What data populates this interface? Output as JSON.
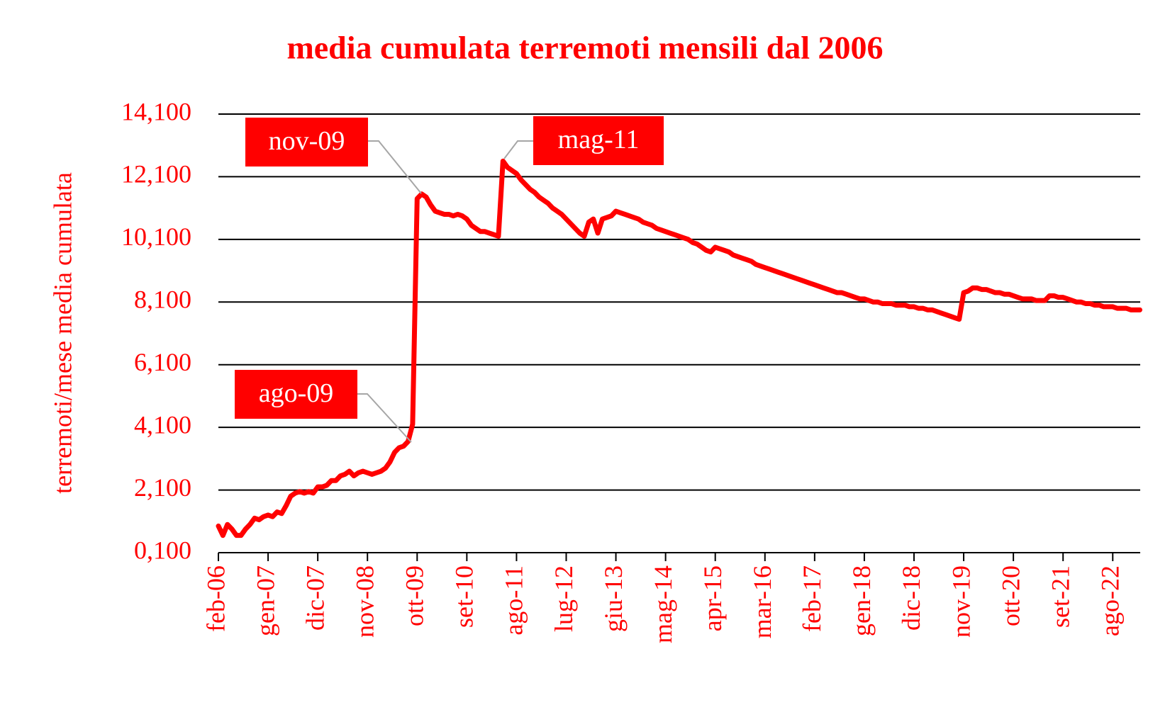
{
  "chart_data": {
    "type": "line",
    "title": "media cumulata terremoti mensili dal 2006",
    "y_label": "terremoti/mese media cumulata",
    "color": "#ff0000",
    "grid": true,
    "ylim": [
      0.1,
      14.1
    ],
    "yticks": [
      {
        "value": 0.1,
        "label": "0,100"
      },
      {
        "value": 2.1,
        "label": "2,100"
      },
      {
        "value": 4.1,
        "label": "4,100"
      },
      {
        "value": 6.1,
        "label": "6,100"
      },
      {
        "value": 8.1,
        "label": "8,100"
      },
      {
        "value": 10.1,
        "label": "10,100"
      },
      {
        "value": 12.1,
        "label": "12,100"
      },
      {
        "value": 14.1,
        "label": "14,100"
      }
    ],
    "categories": [
      "feb-06",
      null,
      null,
      null,
      null,
      null,
      null,
      null,
      null,
      null,
      null,
      "gen-07",
      null,
      null,
      null,
      null,
      null,
      null,
      null,
      null,
      null,
      null,
      "dic-07",
      null,
      null,
      null,
      null,
      null,
      null,
      null,
      null,
      null,
      null,
      "nov-08",
      null,
      null,
      null,
      null,
      null,
      null,
      null,
      null,
      null,
      null,
      "ott-09",
      null,
      null,
      null,
      null,
      null,
      null,
      null,
      null,
      null,
      null,
      "set-10",
      null,
      null,
      null,
      null,
      null,
      null,
      null,
      null,
      null,
      null,
      "ago-11",
      null,
      null,
      null,
      null,
      null,
      null,
      null,
      null,
      null,
      null,
      "lug-12",
      null,
      null,
      null,
      null,
      null,
      null,
      null,
      null,
      null,
      null,
      "giu-13",
      null,
      null,
      null,
      null,
      null,
      null,
      null,
      null,
      null,
      null,
      "mag-14",
      null,
      null,
      null,
      null,
      null,
      null,
      null,
      null,
      null,
      null,
      "apr-15",
      null,
      null,
      null,
      null,
      null,
      null,
      null,
      null,
      null,
      null,
      "mar-16",
      null,
      null,
      null,
      null,
      null,
      null,
      null,
      null,
      null,
      null,
      "feb-17",
      null,
      null,
      null,
      null,
      null,
      null,
      null,
      null,
      null,
      null,
      "gen-18",
      null,
      null,
      null,
      null,
      null,
      null,
      null,
      null,
      null,
      null,
      "dic-18",
      null,
      null,
      null,
      null,
      null,
      null,
      null,
      null,
      null,
      null,
      "nov-19",
      null,
      null,
      null,
      null,
      null,
      null,
      null,
      null,
      null,
      null,
      "ott-20",
      null,
      null,
      null,
      null,
      null,
      null,
      null,
      null,
      null,
      null,
      "set-21",
      null,
      null,
      null,
      null,
      null,
      null,
      null,
      null,
      null,
      null,
      "ago-22",
      null,
      null,
      null,
      null,
      null,
      null
    ],
    "values": [
      0.95,
      0.65,
      1.0,
      0.85,
      0.65,
      0.65,
      0.85,
      1.0,
      1.2,
      1.15,
      1.25,
      1.3,
      1.25,
      1.4,
      1.35,
      1.6,
      1.9,
      2.0,
      2.05,
      2.0,
      2.05,
      2.0,
      2.2,
      2.2,
      2.25,
      2.4,
      2.4,
      2.55,
      2.6,
      2.7,
      2.55,
      2.65,
      2.7,
      2.65,
      2.6,
      2.65,
      2.7,
      2.8,
      3.0,
      3.3,
      3.45,
      3.5,
      3.65,
      4.2,
      11.4,
      11.55,
      11.45,
      11.2,
      11.0,
      10.95,
      10.9,
      10.9,
      10.85,
      10.9,
      10.85,
      10.75,
      10.55,
      10.45,
      10.35,
      10.35,
      10.3,
      10.25,
      10.2,
      12.6,
      12.4,
      12.3,
      12.2,
      12.0,
      11.85,
      11.7,
      11.6,
      11.45,
      11.35,
      11.25,
      11.1,
      11.0,
      10.9,
      10.75,
      10.6,
      10.45,
      10.3,
      10.2,
      10.65,
      10.75,
      10.3,
      10.75,
      10.8,
      10.85,
      11.0,
      10.95,
      10.9,
      10.85,
      10.8,
      10.75,
      10.65,
      10.6,
      10.55,
      10.45,
      10.4,
      10.35,
      10.3,
      10.25,
      10.2,
      10.15,
      10.1,
      10.0,
      9.95,
      9.85,
      9.75,
      9.7,
      9.85,
      9.8,
      9.75,
      9.7,
      9.6,
      9.55,
      9.5,
      9.45,
      9.4,
      9.3,
      9.25,
      9.2,
      9.15,
      9.1,
      9.05,
      9.0,
      8.95,
      8.9,
      8.85,
      8.8,
      8.75,
      8.7,
      8.65,
      8.6,
      8.55,
      8.5,
      8.45,
      8.4,
      8.4,
      8.35,
      8.3,
      8.25,
      8.2,
      8.2,
      8.15,
      8.1,
      8.1,
      8.05,
      8.05,
      8.05,
      8.0,
      8.0,
      8.0,
      7.95,
      7.95,
      7.9,
      7.9,
      7.85,
      7.85,
      7.8,
      7.75,
      7.7,
      7.65,
      7.6,
      7.55,
      8.4,
      8.45,
      8.55,
      8.55,
      8.5,
      8.5,
      8.45,
      8.4,
      8.4,
      8.35,
      8.35,
      8.3,
      8.25,
      8.2,
      8.2,
      8.2,
      8.15,
      8.15,
      8.15,
      8.3,
      8.3,
      8.25,
      8.25,
      8.2,
      8.15,
      8.1,
      8.1,
      8.05,
      8.05,
      8.0,
      8.0,
      7.95,
      7.95,
      7.95,
      7.9,
      7.9,
      7.9,
      7.85,
      7.85,
      7.85
    ],
    "annotations": [
      "nov-09",
      "ago-09",
      "mag-11"
    ]
  }
}
